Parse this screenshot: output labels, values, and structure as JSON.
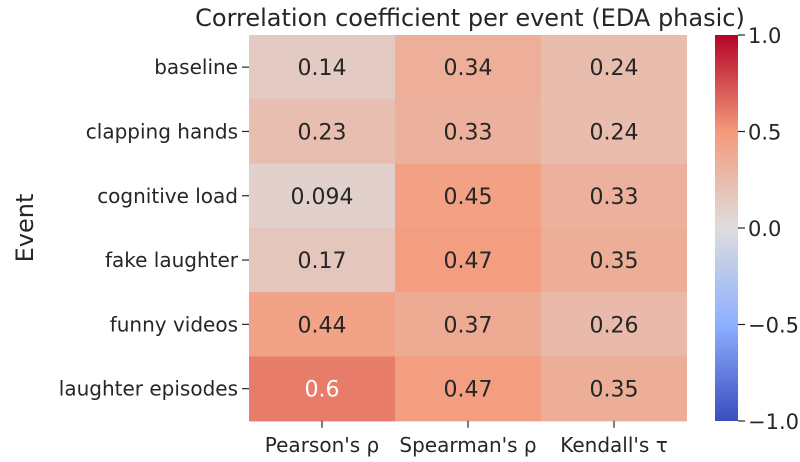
{
  "chart_data": {
    "type": "heatmap",
    "title": "Correlation coefficient per event (EDA phasic)",
    "xlabel": "",
    "ylabel": "Event",
    "rows": [
      "baseline",
      "clapping hands",
      "cognitive load",
      "fake laughter",
      "funny videos",
      "laughter episodes"
    ],
    "columns": [
      "Pearson's ρ",
      "Spearman's ρ",
      "Kendall's τ"
    ],
    "values": [
      [
        0.14,
        0.34,
        0.24
      ],
      [
        0.23,
        0.33,
        0.24
      ],
      [
        0.094,
        0.45,
        0.33
      ],
      [
        0.17,
        0.47,
        0.35
      ],
      [
        0.44,
        0.37,
        0.26
      ],
      [
        0.6,
        0.47,
        0.35
      ]
    ],
    "labels": [
      [
        "0.14",
        "0.34",
        "0.24"
      ],
      [
        "0.23",
        "0.33",
        "0.24"
      ],
      [
        "0.094",
        "0.45",
        "0.33"
      ],
      [
        "0.17",
        "0.47",
        "0.35"
      ],
      [
        "0.44",
        "0.37",
        "0.26"
      ],
      [
        "0.6",
        "0.47",
        "0.35"
      ]
    ],
    "colormap": "coolwarm",
    "colorbar": {
      "range": [
        -1.0,
        1.0
      ],
      "ticks": [
        1.0,
        0.5,
        0.0,
        -0.5,
        -1.0
      ],
      "tick_labels": [
        "1.0",
        "0.5",
        "0.0",
        "−0.5",
        "−1.0"
      ]
    }
  }
}
